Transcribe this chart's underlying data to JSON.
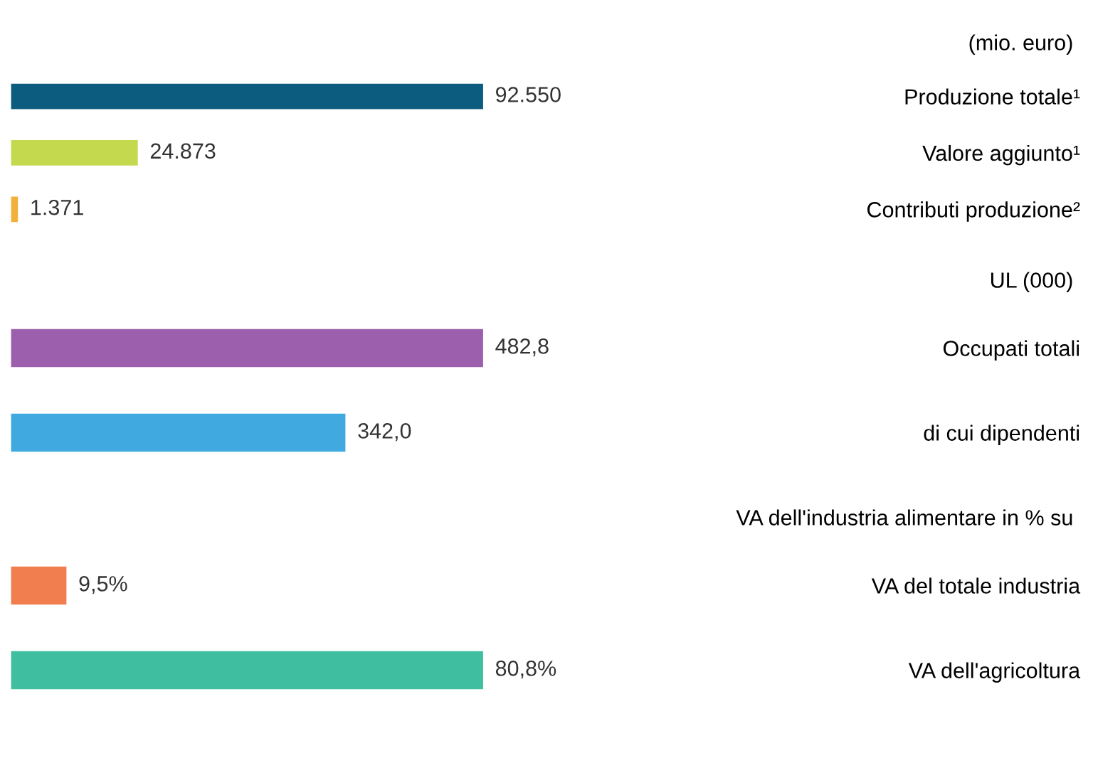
{
  "chart_data": [
    {
      "type": "bar",
      "orientation": "horizontal",
      "title": "(mio. euro)",
      "tick_labels": "y",
      "grid": false,
      "categories": [
        "Produzione totale¹",
        "Valore aggiunto¹",
        "Contributi produzione²"
      ],
      "colors": [
        "#0b5c7e",
        "#c5d94e",
        "#f2b13c"
      ],
      "values": [
        92550,
        24873,
        1371
      ],
      "value_labels": [
        "92.550",
        "24.873",
        "1.371"
      ]
    },
    {
      "type": "bar",
      "orientation": "horizontal",
      "title": "UL (000)",
      "tick_labels": "y",
      "grid": false,
      "categories": [
        "Occupati totali",
        "di cui dipendenti"
      ],
      "colors": [
        "#9b5fae",
        "#3fa9e0"
      ],
      "values": [
        482.8,
        342.0
      ],
      "value_labels": [
        "482,8",
        "342,0"
      ]
    },
    {
      "type": "bar",
      "orientation": "horizontal",
      "title": "VA dell'industria alimentare in % su",
      "tick_labels": "y",
      "grid": false,
      "categories": [
        "VA del totale industria",
        "VA dell'agricoltura"
      ],
      "colors": [
        "#f07e4e",
        "#3fbf9f"
      ],
      "values": [
        9.5,
        80.8
      ],
      "value_labels": [
        "9,5%",
        "80,8%"
      ]
    }
  ]
}
